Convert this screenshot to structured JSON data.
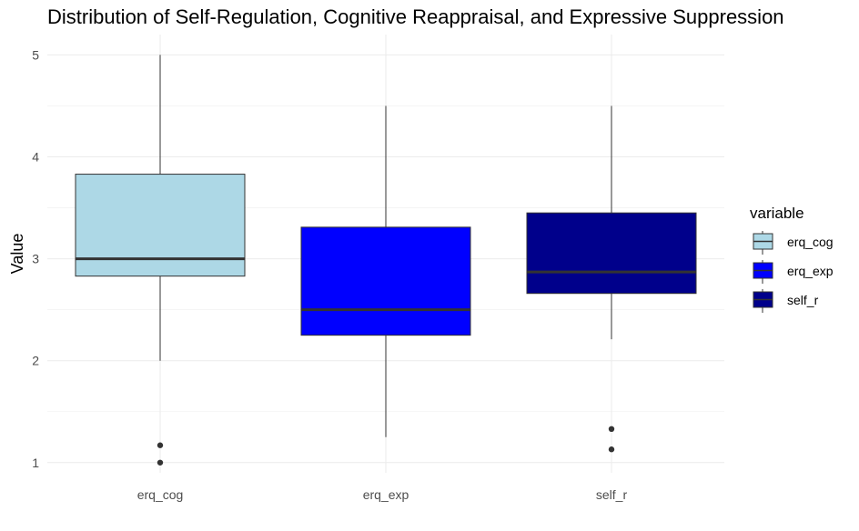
{
  "chart_data": {
    "type": "boxplot",
    "title": "Distribution of Self-Regulation, Cognitive Reappraisal, and Expressive Suppression",
    "xlabel": "",
    "ylabel": "Value",
    "ylim": [
      0.9,
      5.2
    ],
    "yticks": [
      1,
      2,
      3,
      4,
      5
    ],
    "grid": true,
    "legend": {
      "title": "variable",
      "position": "right"
    },
    "categories": [
      "erq_cog",
      "erq_exp",
      "self_r"
    ],
    "series": [
      {
        "name": "erq_cog",
        "color": "#ADD8E6",
        "whisker_low": 2.0,
        "q1": 2.83,
        "median": 3.0,
        "q3": 3.83,
        "whisker_high": 5.0,
        "outliers": [
          1.0,
          1.17
        ]
      },
      {
        "name": "erq_exp",
        "color": "#0000FF",
        "whisker_low": 1.25,
        "q1": 2.25,
        "median": 2.5,
        "q3": 3.31,
        "whisker_high": 4.5,
        "outliers": []
      },
      {
        "name": "self_r",
        "color": "#00008B",
        "whisker_low": 2.21,
        "q1": 2.66,
        "median": 2.87,
        "q3": 3.45,
        "whisker_high": 4.5,
        "outliers": [
          1.13,
          1.33
        ]
      }
    ]
  }
}
